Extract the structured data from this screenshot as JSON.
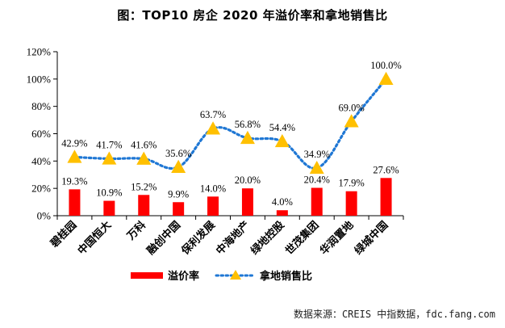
{
  "title": "图：TOP10 房企 2020 年溢价率和拿地销售比",
  "source": "数据来源：CREIS 中指数据，fdc.fang.com",
  "colors": {
    "bar": "#ff0000",
    "line": "#1f77d4",
    "marker": "#ffc000"
  },
  "chart_data": {
    "type": "bar+line",
    "categories": [
      "碧桂园",
      "中国恒大",
      "万科",
      "融创中国",
      "保利发展",
      "中海地产",
      "绿地控股",
      "世茂集团",
      "华润置地",
      "绿城中国"
    ],
    "series": [
      {
        "name": "溢价率",
        "type": "bar",
        "values": [
          19.3,
          10.9,
          15.2,
          9.9,
          14.0,
          20.0,
          4.0,
          20.4,
          17.9,
          27.6
        ],
        "labels": [
          "19.3%",
          "10.9%",
          "15.2%",
          "9.9%",
          "14.0%",
          "20.0%",
          "4.0%",
          "20.4%",
          "17.9%",
          "27.6%"
        ]
      },
      {
        "name": "拿地销售比",
        "type": "line",
        "values": [
          42.9,
          41.7,
          41.6,
          35.6,
          63.7,
          56.8,
          54.4,
          34.9,
          69.0,
          100.0
        ],
        "labels": [
          "42.9%",
          "41.7%",
          "41.6%",
          "35.6%",
          "63.7%",
          "56.8%",
          "54.4%",
          "34.9%",
          "69.0%",
          "100.0%"
        ]
      }
    ],
    "yticks": [
      "0%",
      "20%",
      "40%",
      "60%",
      "80%",
      "100%",
      "120%"
    ],
    "ylim": [
      0,
      120
    ],
    "grid": false,
    "legend": "bottom"
  }
}
